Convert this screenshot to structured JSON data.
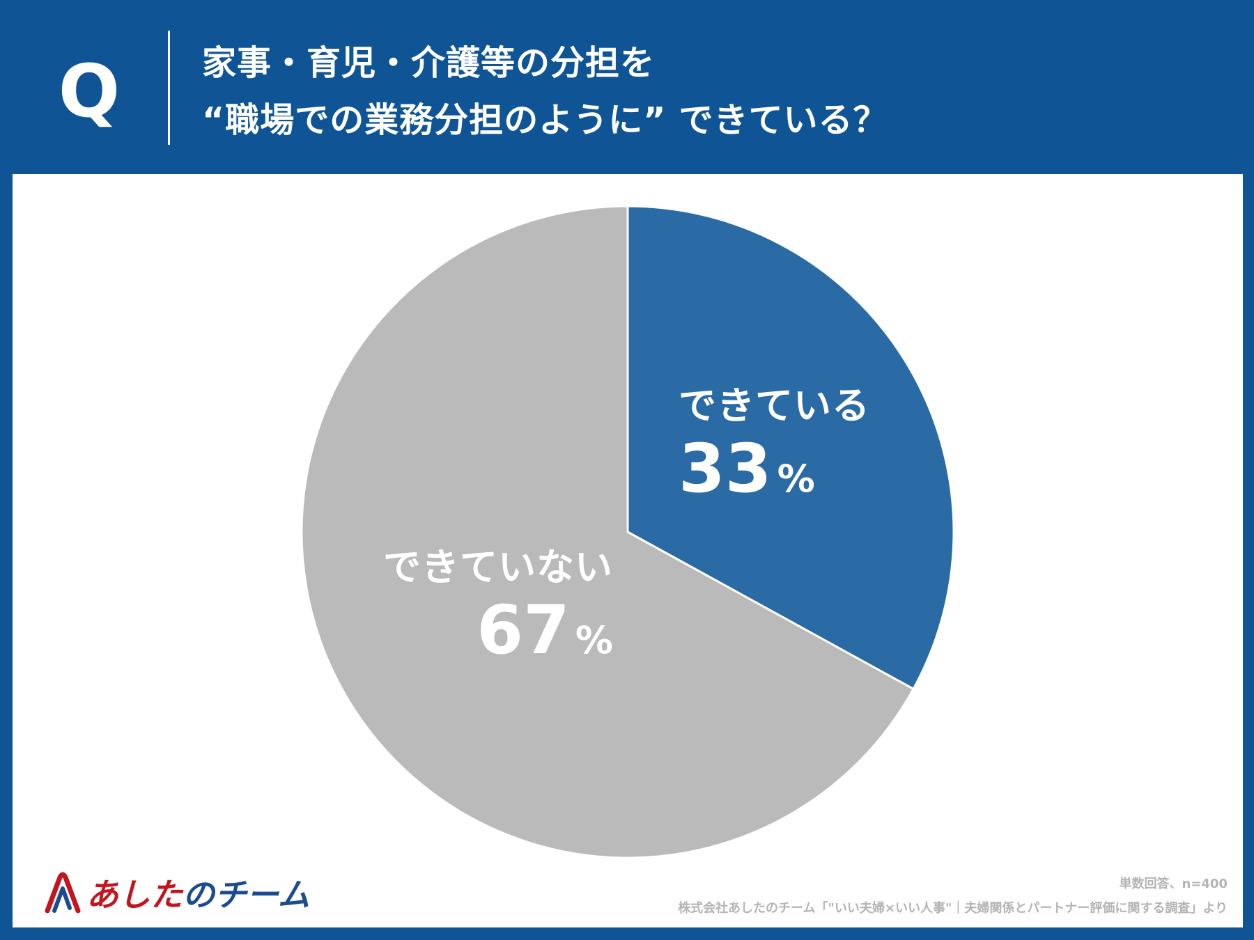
{
  "question": {
    "mark": "Q",
    "line1": "家事・育児・介護等の分担を",
    "line2": "“職場での業務分担のように” できている？"
  },
  "colors": {
    "background": "#0f5596",
    "panel": "#ffffff",
    "slice_yes": "#2a6aa5",
    "slice_no": "#bababa"
  },
  "chart_data": {
    "type": "pie",
    "slices": [
      {
        "label": "できている",
        "value": 33,
        "unit": "%",
        "color": "#2a6aa5"
      },
      {
        "label": "できていない",
        "value": 67,
        "unit": "%",
        "color": "#bababa"
      }
    ]
  },
  "logo": {
    "text_part1": "あした",
    "text_part2": "のチーム",
    "icon": "paperclip-a-logo-icon"
  },
  "footer": {
    "sample": "単数回答、n=400",
    "source": "株式会社あしたのチーム「\"いい夫婦×いい人事\"｜夫婦関係とパートナー評価に関する調査」より"
  }
}
